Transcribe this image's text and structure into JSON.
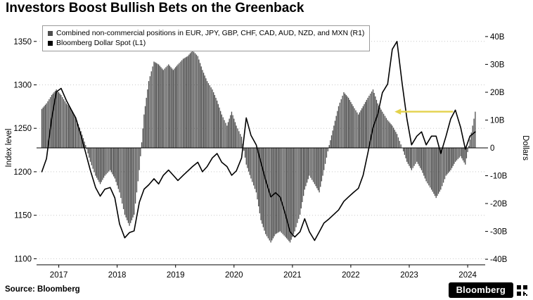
{
  "title": "Investors Boost Bullish Bets on the Greenback",
  "source": "Source: Bloomberg",
  "logo": "Bloomberg",
  "legend": [
    {
      "label": "Combined non-commercial positions in EUR, JPY, GBP, CHF, CAD, AUD, NZD, and MXN (R1)",
      "color": "#4d4d4d"
    },
    {
      "label": "Bloomberg Dollar Spot (L1)",
      "color": "#000000"
    }
  ],
  "axes": {
    "left_title": "Index level",
    "right_title": "Dollars",
    "left_tick_values": [
      1100,
      1150,
      1200,
      1250,
      1300,
      1350
    ],
    "left_tick_labels": [
      "1100",
      "1150",
      "1200",
      "1250",
      "1300",
      "1350"
    ],
    "right_tick_values": [
      -40,
      -30,
      -20,
      -10,
      0,
      10,
      20,
      30,
      40
    ],
    "right_tick_labels": [
      "-40B",
      "-30B",
      "-20B",
      "-10B",
      "0",
      "10B",
      "20B",
      "30B",
      "40B"
    ],
    "x_tick_values": [
      2017,
      2018,
      2019,
      2020,
      2021,
      2022,
      2023,
      2024
    ],
    "x_tick_labels": [
      "2017",
      "2018",
      "2019",
      "2020",
      "2021",
      "2022",
      "2023",
      "2024"
    ]
  },
  "chart_data": {
    "type": "combo",
    "x_range": [
      2016.62,
      2024.3
    ],
    "left_range": [
      1093,
      1362
    ],
    "right_range": [
      -42,
      42
    ],
    "grid": "dotted-horizontal",
    "legend_position": "top-left",
    "x": [
      2016.71,
      2016.79,
      2016.88,
      2016.96,
      2017.04,
      2017.13,
      2017.21,
      2017.29,
      2017.38,
      2017.46,
      2017.54,
      2017.63,
      2017.71,
      2017.79,
      2017.88,
      2017.96,
      2018.04,
      2018.13,
      2018.21,
      2018.29,
      2018.38,
      2018.46,
      2018.54,
      2018.63,
      2018.71,
      2018.79,
      2018.88,
      2018.96,
      2019.04,
      2019.13,
      2019.21,
      2019.29,
      2019.38,
      2019.46,
      2019.54,
      2019.63,
      2019.71,
      2019.79,
      2019.88,
      2019.96,
      2020.04,
      2020.13,
      2020.21,
      2020.29,
      2020.38,
      2020.46,
      2020.54,
      2020.63,
      2020.71,
      2020.79,
      2020.88,
      2020.96,
      2021.04,
      2021.13,
      2021.21,
      2021.29,
      2021.38,
      2021.46,
      2021.54,
      2021.63,
      2021.71,
      2021.79,
      2021.88,
      2021.96,
      2022.04,
      2022.13,
      2022.21,
      2022.29,
      2022.38,
      2022.46,
      2022.54,
      2022.63,
      2022.71,
      2022.79,
      2022.88,
      2022.96,
      2023.04,
      2023.13,
      2023.21,
      2023.29,
      2023.38,
      2023.46,
      2023.54,
      2023.63,
      2023.71,
      2023.79,
      2023.88,
      2023.96,
      2024.04,
      2024.13
    ],
    "series": [
      {
        "name": "Combined non-commercial positions in EUR, JPY, GBP, CHF, CAD, AUD, NZD, and MXN (R1)",
        "type": "bar",
        "axis": "right",
        "unit": "billion USD",
        "color": "#4d4d4d",
        "values": [
          14,
          16,
          19,
          21,
          19,
          16,
          14,
          11,
          6,
          1,
          -5,
          -10,
          -13,
          -10,
          -8,
          -11,
          -16,
          -24,
          -28,
          -24,
          -8,
          12,
          24,
          31,
          30,
          28,
          30,
          28,
          30,
          32,
          33,
          35,
          33,
          28,
          24,
          21,
          17,
          12,
          8,
          13,
          8,
          4,
          -6,
          -11,
          -16,
          -26,
          -31,
          -34,
          -31,
          -30,
          -32,
          -34,
          -30,
          -24,
          -15,
          -10,
          -13,
          -16,
          -8,
          1,
          8,
          15,
          20,
          18,
          15,
          12,
          15,
          18,
          21,
          16,
          13,
          10,
          8,
          5,
          0,
          -5,
          -8,
          -5,
          -8,
          -12,
          -15,
          -18,
          -15,
          -10,
          -8,
          -5,
          -3,
          -6,
          3,
          13
        ]
      },
      {
        "name": "Bloomberg Dollar Spot (L1)",
        "type": "line",
        "axis": "left",
        "unit": "index level",
        "color": "#000000",
        "values": [
          1200,
          1215,
          1262,
          1292,
          1296,
          1282,
          1272,
          1262,
          1242,
          1222,
          1202,
          1182,
          1172,
          1180,
          1182,
          1170,
          1140,
          1124,
          1130,
          1132,
          1165,
          1180,
          1185,
          1192,
          1186,
          1196,
          1202,
          1196,
          1190,
          1196,
          1201,
          1206,
          1211,
          1200,
          1206,
          1216,
          1221,
          1211,
          1206,
          1196,
          1201,
          1216,
          1262,
          1242,
          1231,
          1211,
          1191,
          1171,
          1176,
          1171,
          1151,
          1131,
          1125,
          1131,
          1146,
          1131,
          1121,
          1131,
          1141,
          1146,
          1151,
          1156,
          1166,
          1171,
          1176,
          1181,
          1196,
          1221,
          1251,
          1266,
          1291,
          1301,
          1341,
          1350,
          1301,
          1261,
          1231,
          1241,
          1246,
          1231,
          1241,
          1241,
          1221,
          1241,
          1261,
          1271,
          1251,
          1226,
          1241,
          1246
        ]
      }
    ],
    "annotation": {
      "type": "arrow-left",
      "axis": "right",
      "y": 13,
      "x_from": 2023.75,
      "x_to": 2022.75,
      "color": "#e3d24b"
    }
  }
}
